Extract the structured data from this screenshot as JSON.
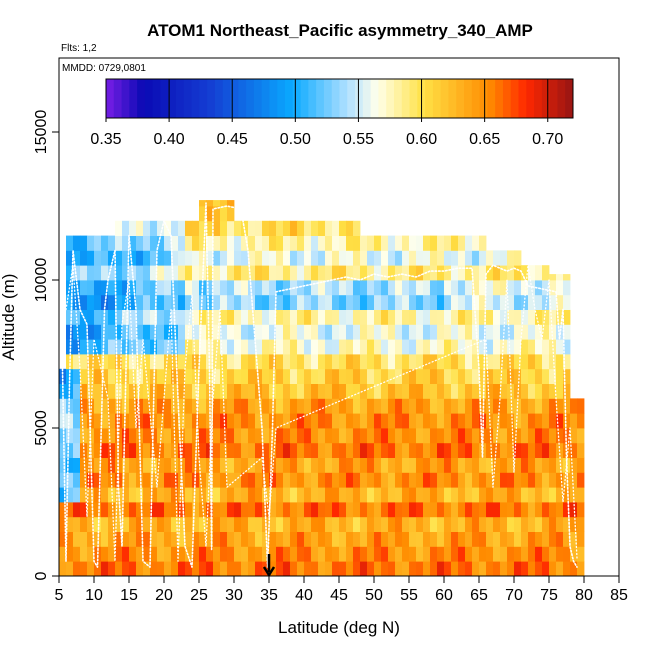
{
  "chart_data": {
    "type": "heatmap",
    "title": "ATOM1 Northeast_Pacific asymmetry_340_AMP",
    "annotations": [
      "Flts: 1,2",
      "MMDD: 0729,0801"
    ],
    "xlabel": "Latitude (deg N)",
    "ylabel": "Altitude (m)",
    "xlim": [
      5,
      85
    ],
    "ylim": [
      0,
      17500
    ],
    "x_ticks": [
      5,
      10,
      15,
      20,
      25,
      30,
      35,
      40,
      45,
      50,
      55,
      60,
      65,
      70,
      75,
      80,
      85
    ],
    "y_ticks": [
      0,
      5000,
      10000,
      15000
    ],
    "y_tick_labels": [
      "0",
      "5000",
      "10000",
      "15000"
    ],
    "colorbar": {
      "min": 0.35,
      "max": 0.72,
      "ticks": [
        0.35,
        0.4,
        0.45,
        0.5,
        0.55,
        0.6,
        0.65,
        0.7
      ],
      "tick_labels": [
        "0.35",
        "0.40",
        "0.45",
        "0.50",
        "0.55",
        "0.60",
        "0.65",
        "0.70"
      ]
    },
    "arrow_marker_latitude": 35,
    "column_tops": [
      {
        "lat_start": 5,
        "lat_end": 6,
        "top": 7000
      },
      {
        "lat_start": 6,
        "lat_end": 9,
        "top": 11500
      },
      {
        "lat_start": 9,
        "lat_end": 13,
        "top": 11500
      },
      {
        "lat_start": 13,
        "lat_end": 16,
        "top": 12000
      },
      {
        "lat_start": 16,
        "lat_end": 20,
        "top": 12000
      },
      {
        "lat_start": 20,
        "lat_end": 25,
        "top": 12000
      },
      {
        "lat_start": 25,
        "lat_end": 27,
        "top": 12700
      },
      {
        "lat_start": 27,
        "lat_end": 30,
        "top": 12700
      },
      {
        "lat_start": 30,
        "lat_end": 35,
        "top": 12000
      },
      {
        "lat_start": 35,
        "lat_end": 40,
        "top": 12000
      },
      {
        "lat_start": 40,
        "lat_end": 48,
        "top": 12000
      },
      {
        "lat_start": 48,
        "lat_end": 56,
        "top": 11500
      },
      {
        "lat_start": 56,
        "lat_end": 62,
        "top": 11500
      },
      {
        "lat_start": 62,
        "lat_end": 66,
        "top": 11500
      },
      {
        "lat_start": 66,
        "lat_end": 71,
        "top": 11000
      },
      {
        "lat_start": 71,
        "lat_end": 75,
        "top": 10500
      },
      {
        "lat_start": 75,
        "lat_end": 78,
        "top": 10200
      },
      {
        "lat_start": 78,
        "lat_end": 80,
        "top": 6000
      }
    ],
    "layer_values": [
      {
        "alt_min": 0,
        "alt_max": 500,
        "value": 0.66
      },
      {
        "alt_min": 500,
        "alt_max": 1000,
        "value": 0.65
      },
      {
        "alt_min": 1000,
        "alt_max": 1500,
        "value": 0.64
      },
      {
        "alt_min": 1500,
        "alt_max": 2000,
        "value": 0.63
      },
      {
        "alt_min": 2000,
        "alt_max": 2500,
        "value": 0.66
      },
      {
        "alt_min": 2500,
        "alt_max": 3000,
        "value": 0.63
      },
      {
        "alt_min": 3000,
        "alt_max": 3500,
        "value": 0.65
      },
      {
        "alt_min": 3500,
        "alt_max": 4000,
        "value": 0.64
      },
      {
        "alt_min": 4000,
        "alt_max": 4500,
        "value": 0.66
      },
      {
        "alt_min": 4500,
        "alt_max": 5000,
        "value": 0.65
      },
      {
        "alt_min": 5000,
        "alt_max": 5500,
        "value": 0.65
      },
      {
        "alt_min": 5500,
        "alt_max": 6000,
        "value": 0.64
      },
      {
        "alt_min": 6000,
        "alt_max": 6500,
        "value": 0.62
      },
      {
        "alt_min": 6500,
        "alt_max": 7000,
        "value": 0.61
      },
      {
        "alt_min": 7000,
        "alt_max": 7500,
        "value": 0.6
      },
      {
        "alt_min": 7500,
        "alt_max": 8000,
        "value": 0.57
      },
      {
        "alt_min": 8000,
        "alt_max": 8500,
        "value": 0.56
      },
      {
        "alt_min": 8500,
        "alt_max": 9000,
        "value": 0.58
      },
      {
        "alt_min": 9000,
        "alt_max": 9500,
        "value": 0.55
      },
      {
        "alt_min": 9500,
        "alt_max": 10000,
        "value": 0.56
      },
      {
        "alt_min": 10000,
        "alt_max": 10500,
        "value": 0.59
      },
      {
        "alt_min": 10500,
        "alt_max": 11000,
        "value": 0.56
      },
      {
        "alt_min": 11000,
        "alt_max": 11500,
        "value": 0.58
      },
      {
        "alt_min": 11500,
        "alt_max": 12000,
        "value": 0.6
      },
      {
        "alt_min": 12000,
        "alt_max": 12700,
        "value": 0.61
      }
    ],
    "flight_track_1": [
      [
        5.5,
        7000
      ],
      [
        6,
        500
      ],
      [
        6.5,
        6500
      ],
      [
        7,
        11000
      ],
      [
        8,
        9000
      ],
      [
        9,
        8500
      ],
      [
        10,
        500
      ],
      [
        10.5,
        300
      ],
      [
        11.5,
        9000
      ],
      [
        12,
        10000
      ],
      [
        13,
        11000
      ],
      [
        13.5,
        3000
      ],
      [
        14,
        1000
      ],
      [
        15,
        11500
      ],
      [
        16,
        9000
      ],
      [
        17,
        500
      ],
      [
        18,
        300
      ],
      [
        19,
        11000
      ],
      [
        20,
        12000
      ],
      [
        21,
        11500
      ],
      [
        22,
        6000
      ],
      [
        23,
        1000
      ],
      [
        24,
        300
      ],
      [
        25,
        7000
      ],
      [
        26,
        12600
      ],
      [
        26.5,
        7000
      ],
      [
        26.8,
        900
      ],
      [
        27,
        12400
      ],
      [
        29,
        12500
      ],
      [
        31,
        12400
      ],
      [
        32,
        11000
      ],
      [
        34,
        5000
      ],
      [
        34.8,
        300
      ],
      [
        35.5,
        5000
      ],
      [
        36,
        9600
      ],
      [
        38,
        9700
      ],
      [
        40,
        9800
      ],
      [
        42,
        9900
      ],
      [
        44,
        10000
      ],
      [
        46,
        10100
      ],
      [
        48,
        10000
      ],
      [
        50,
        10200
      ],
      [
        52,
        10100
      ],
      [
        54,
        10200
      ],
      [
        56,
        10100
      ],
      [
        58,
        10300
      ],
      [
        60,
        10300
      ],
      [
        62,
        10400
      ],
      [
        64,
        10400
      ],
      [
        65,
        7000
      ],
      [
        65.5,
        4000
      ],
      [
        66,
        10200
      ],
      [
        67,
        10500
      ],
      [
        68,
        10400
      ],
      [
        69,
        10300
      ],
      [
        70,
        10400
      ],
      [
        71,
        10300
      ],
      [
        72,
        9800
      ],
      [
        74,
        9700
      ],
      [
        76,
        9600
      ],
      [
        76.5,
        8000
      ],
      [
        77,
        9000
      ],
      [
        77.5,
        4000
      ],
      [
        78,
        1000
      ],
      [
        78.5,
        500
      ],
      [
        79,
        300
      ]
    ],
    "flight_track_2": [
      [
        6,
        9000
      ],
      [
        7,
        10500
      ],
      [
        8,
        7000
      ],
      [
        9,
        2000
      ],
      [
        10,
        8000
      ],
      [
        12,
        6000
      ],
      [
        13,
        500
      ],
      [
        14,
        8500
      ],
      [
        15,
        10000
      ],
      [
        16,
        5000
      ],
      [
        17,
        8000
      ],
      [
        19,
        3000
      ],
      [
        21,
        9000
      ],
      [
        22,
        500
      ],
      [
        23,
        7000
      ],
      [
        24,
        9500
      ],
      [
        25,
        4000
      ],
      [
        26,
        1000
      ],
      [
        27,
        6000
      ],
      [
        28,
        9000
      ],
      [
        29,
        3000
      ],
      [
        34,
        4000
      ],
      [
        35,
        2000
      ],
      [
        36,
        5000
      ],
      [
        66,
        8000
      ],
      [
        67,
        3000
      ],
      [
        68,
        6000
      ],
      [
        69,
        10000
      ],
      [
        70,
        3500
      ],
      [
        71,
        8000
      ],
      [
        72,
        10500
      ],
      [
        73,
        9000
      ],
      [
        74,
        8000
      ],
      [
        75,
        10000
      ],
      [
        76,
        6000
      ],
      [
        77,
        2500
      ],
      [
        78,
        5000
      ],
      [
        79,
        600
      ]
    ]
  }
}
